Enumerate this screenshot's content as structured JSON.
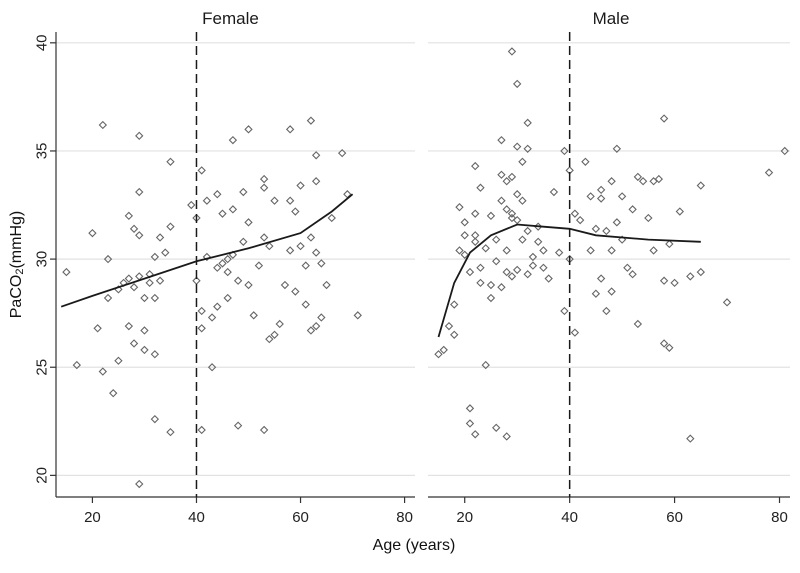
{
  "chart_data": {
    "type": "scatter",
    "ylabel": {
      "prefix": "PaCO",
      "sub": "2",
      "suffix": "(mmHg)"
    },
    "xlabel": "Age (years)",
    "ylim": [
      19,
      40.5
    ],
    "yticks": [
      20,
      25,
      30,
      35,
      40
    ],
    "grid": true,
    "reference_line_x": 40,
    "panels": [
      {
        "title": "Female",
        "xlim": [
          13,
          82
        ],
        "xticks": [
          20,
          40,
          60,
          80
        ],
        "points": [
          [
            15,
            29.4
          ],
          [
            17,
            25.1
          ],
          [
            20,
            31.2
          ],
          [
            21,
            26.8
          ],
          [
            22,
            24.8
          ],
          [
            22,
            36.2
          ],
          [
            23,
            30.0
          ],
          [
            23,
            28.2
          ],
          [
            24,
            23.8
          ],
          [
            25,
            28.6
          ],
          [
            25,
            25.3
          ],
          [
            26,
            28.9
          ],
          [
            27,
            32.0
          ],
          [
            27,
            29.1
          ],
          [
            27,
            26.9
          ],
          [
            28,
            31.4
          ],
          [
            28,
            28.7
          ],
          [
            28,
            26.1
          ],
          [
            29,
            35.7
          ],
          [
            29,
            33.1
          ],
          [
            29,
            29.2
          ],
          [
            29,
            31.1
          ],
          [
            30,
            28.2
          ],
          [
            30,
            26.7
          ],
          [
            30,
            25.8
          ],
          [
            31,
            29.3
          ],
          [
            31,
            28.9
          ],
          [
            32,
            30.1
          ],
          [
            32,
            28.2
          ],
          [
            32,
            25.6
          ],
          [
            33,
            31.0
          ],
          [
            33,
            29.0
          ],
          [
            34,
            30.3
          ],
          [
            35,
            34.5
          ],
          [
            35,
            31.5
          ],
          [
            29,
            19.6
          ],
          [
            32,
            22.6
          ],
          [
            35,
            22.0
          ],
          [
            39,
            32.5
          ],
          [
            40,
            31.9
          ],
          [
            40,
            29.0
          ],
          [
            41,
            34.1
          ],
          [
            41,
            27.6
          ],
          [
            41,
            26.8
          ],
          [
            41,
            22.1
          ],
          [
            42,
            32.7
          ],
          [
            42,
            30.1
          ],
          [
            43,
            27.3
          ],
          [
            43,
            25.0
          ],
          [
            44,
            33.0
          ],
          [
            44,
            29.6
          ],
          [
            44,
            27.8
          ],
          [
            45,
            32.1
          ],
          [
            45,
            29.8
          ],
          [
            46,
            30.0
          ],
          [
            46,
            28.2
          ],
          [
            46,
            29.4
          ],
          [
            47,
            35.5
          ],
          [
            47,
            32.3
          ],
          [
            47,
            30.2
          ],
          [
            48,
            29.0
          ],
          [
            48,
            22.3
          ],
          [
            49,
            33.1
          ],
          [
            49,
            30.8
          ],
          [
            50,
            36.0
          ],
          [
            50,
            31.7
          ],
          [
            50,
            28.8
          ],
          [
            51,
            27.4
          ],
          [
            52,
            29.7
          ],
          [
            53,
            33.7
          ],
          [
            53,
            33.3
          ],
          [
            53,
            31.0
          ],
          [
            53,
            22.1
          ],
          [
            54,
            30.6
          ],
          [
            54,
            26.3
          ],
          [
            55,
            32.7
          ],
          [
            55,
            26.5
          ],
          [
            56,
            27.0
          ],
          [
            57,
            28.8
          ],
          [
            58,
            36.0
          ],
          [
            58,
            32.7
          ],
          [
            58,
            30.4
          ],
          [
            59,
            32.2
          ],
          [
            59,
            28.5
          ],
          [
            60,
            33.4
          ],
          [
            60,
            30.6
          ],
          [
            61,
            29.7
          ],
          [
            61,
            27.9
          ],
          [
            62,
            36.4
          ],
          [
            62,
            31.0
          ],
          [
            63,
            34.8
          ],
          [
            63,
            33.6
          ],
          [
            63,
            30.3
          ],
          [
            63,
            26.9
          ],
          [
            64,
            29.8
          ],
          [
            64,
            27.3
          ],
          [
            65,
            28.8
          ],
          [
            66,
            31.9
          ],
          [
            68,
            34.9
          ],
          [
            69,
            33.0
          ],
          [
            71,
            27.4
          ],
          [
            62,
            26.7
          ]
        ],
        "fit": [
          [
            14,
            27.8
          ],
          [
            20,
            28.3
          ],
          [
            30,
            29.1
          ],
          [
            40,
            29.9
          ],
          [
            50,
            30.5
          ],
          [
            60,
            31.2
          ],
          [
            66,
            32.2
          ],
          [
            70,
            33.0
          ]
        ]
      },
      {
        "title": "Male",
        "xlim": [
          13,
          82
        ],
        "xticks": [
          20,
          40,
          60,
          80
        ],
        "points": [
          [
            15,
            25.6
          ],
          [
            16,
            25.8
          ],
          [
            17,
            26.9
          ],
          [
            18,
            27.9
          ],
          [
            18,
            26.5
          ],
          [
            19,
            30.4
          ],
          [
            19,
            32.4
          ],
          [
            20,
            31.7
          ],
          [
            20,
            30.2
          ],
          [
            21,
            29.4
          ],
          [
            21,
            23.1
          ],
          [
            21,
            22.4
          ],
          [
            22,
            34.3
          ],
          [
            22,
            32.1
          ],
          [
            22,
            31.1
          ],
          [
            22,
            30.8
          ],
          [
            23,
            33.3
          ],
          [
            23,
            29.6
          ],
          [
            23,
            28.9
          ],
          [
            24,
            25.1
          ],
          [
            24,
            30.5
          ],
          [
            25,
            32.0
          ],
          [
            25,
            28.8
          ],
          [
            25,
            28.2
          ],
          [
            26,
            30.9
          ],
          [
            26,
            29.9
          ],
          [
            27,
            35.5
          ],
          [
            27,
            33.9
          ],
          [
            27,
            32.7
          ],
          [
            27,
            28.7
          ],
          [
            28,
            33.6
          ],
          [
            28,
            32.3
          ],
          [
            28,
            30.4
          ],
          [
            28,
            29.4
          ],
          [
            29,
            39.6
          ],
          [
            29,
            33.8
          ],
          [
            29,
            32.1
          ],
          [
            29,
            31.9
          ],
          [
            29,
            29.2
          ],
          [
            30,
            38.1
          ],
          [
            30,
            35.2
          ],
          [
            30,
            33.0
          ],
          [
            30,
            31.8
          ],
          [
            30,
            29.5
          ],
          [
            31,
            34.5
          ],
          [
            31,
            32.7
          ],
          [
            31,
            30.9
          ],
          [
            32,
            36.3
          ],
          [
            32,
            35.1
          ],
          [
            32,
            31.3
          ],
          [
            32,
            29.3
          ],
          [
            33,
            30.1
          ],
          [
            33,
            29.7
          ],
          [
            34,
            31.5
          ],
          [
            34,
            30.8
          ],
          [
            35,
            30.4
          ],
          [
            35,
            29.6
          ],
          [
            36,
            29.1
          ],
          [
            37,
            33.1
          ],
          [
            38,
            30.3
          ],
          [
            39,
            27.6
          ],
          [
            39,
            35.0
          ],
          [
            40,
            34.1
          ],
          [
            40,
            30.0
          ],
          [
            41,
            32.1
          ],
          [
            41,
            26.6
          ],
          [
            42,
            31.8
          ],
          [
            43,
            34.5
          ],
          [
            44,
            32.9
          ],
          [
            44,
            30.4
          ],
          [
            45,
            31.4
          ],
          [
            45,
            28.4
          ],
          [
            46,
            33.2
          ],
          [
            46,
            32.8
          ],
          [
            46,
            29.1
          ],
          [
            47,
            31.3
          ],
          [
            47,
            27.6
          ],
          [
            48,
            33.6
          ],
          [
            48,
            30.4
          ],
          [
            48,
            28.5
          ],
          [
            49,
            35.1
          ],
          [
            49,
            31.7
          ],
          [
            50,
            32.9
          ],
          [
            50,
            30.9
          ],
          [
            51,
            29.6
          ],
          [
            52,
            32.3
          ],
          [
            52,
            29.3
          ],
          [
            53,
            33.8
          ],
          [
            53,
            27.0
          ],
          [
            54,
            33.6
          ],
          [
            55,
            31.9
          ],
          [
            56,
            33.6
          ],
          [
            56,
            30.4
          ],
          [
            57,
            33.7
          ],
          [
            58,
            36.5
          ],
          [
            58,
            29.0
          ],
          [
            58,
            26.1
          ],
          [
            59,
            30.7
          ],
          [
            59,
            25.9
          ],
          [
            60,
            28.9
          ],
          [
            61,
            32.2
          ],
          [
            63,
            21.7
          ],
          [
            63,
            29.2
          ],
          [
            65,
            33.4
          ],
          [
            65,
            29.4
          ],
          [
            70,
            28.0
          ],
          [
            78,
            34.0
          ],
          [
            81,
            35.0
          ],
          [
            22,
            21.9
          ],
          [
            26,
            22.2
          ],
          [
            28,
            21.8
          ],
          [
            20,
            31.1
          ]
        ],
        "fit": [
          [
            15,
            26.4
          ],
          [
            18,
            28.9
          ],
          [
            21,
            30.3
          ],
          [
            25,
            31.1
          ],
          [
            30,
            31.6
          ],
          [
            35,
            31.5
          ],
          [
            40,
            31.4
          ],
          [
            45,
            31.1
          ],
          [
            55,
            30.9
          ],
          [
            65,
            30.8
          ]
        ]
      }
    ]
  }
}
